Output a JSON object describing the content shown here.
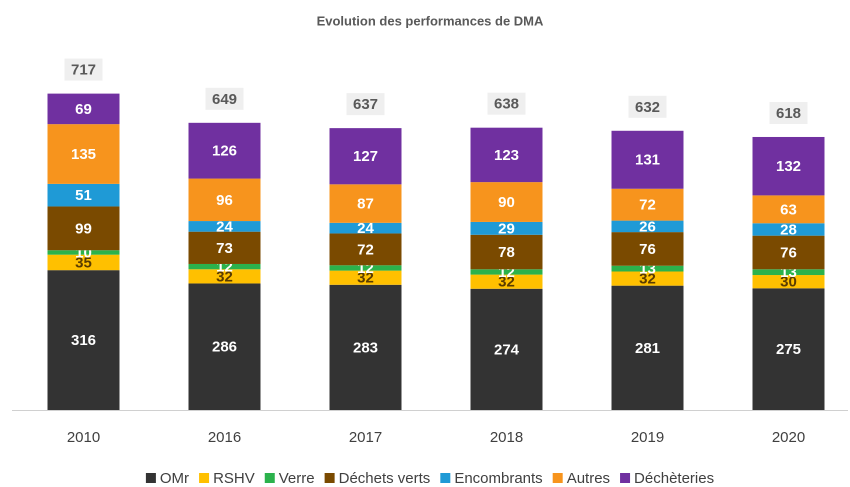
{
  "chart_data": {
    "type": "stacked_bar",
    "title": "Evolution des performances de DMA",
    "categories": [
      "2010",
      "2016",
      "2017",
      "2018",
      "2019",
      "2020"
    ],
    "series": [
      {
        "name": "OMr",
        "color": "#333333",
        "label_color": "#ffffff",
        "values": [
          316,
          286,
          283,
          274,
          281,
          275
        ]
      },
      {
        "name": "RSHV",
        "color": "#ffc000",
        "label_color": "#5a3c00",
        "values": [
          35,
          32,
          32,
          32,
          32,
          30
        ]
      },
      {
        "name": "Verre",
        "color": "#2bb24c",
        "label_color": "#ffffff",
        "values": [
          10,
          12,
          12,
          12,
          13,
          13
        ]
      },
      {
        "name": "Déchets verts",
        "color": "#7a4a00",
        "label_color": "#ffffff",
        "values": [
          99,
          73,
          72,
          78,
          76,
          76
        ]
      },
      {
        "name": "Encombrants",
        "color": "#1f9ad6",
        "label_color": "#ffffff",
        "values": [
          51,
          24,
          24,
          29,
          26,
          28
        ]
      },
      {
        "name": "Autres",
        "color": "#f7941d",
        "label_color": "#ffffff",
        "values": [
          135,
          96,
          87,
          90,
          72,
          63
        ]
      },
      {
        "name": "Déchèteries",
        "color": "#7030a0",
        "label_color": "#ffffff",
        "values": [
          69,
          126,
          127,
          123,
          131,
          132
        ]
      }
    ],
    "totals": [
      717,
      649,
      637,
      638,
      632,
      618
    ],
    "ylim": [
      0,
      800
    ],
    "legend": "bottom"
  }
}
